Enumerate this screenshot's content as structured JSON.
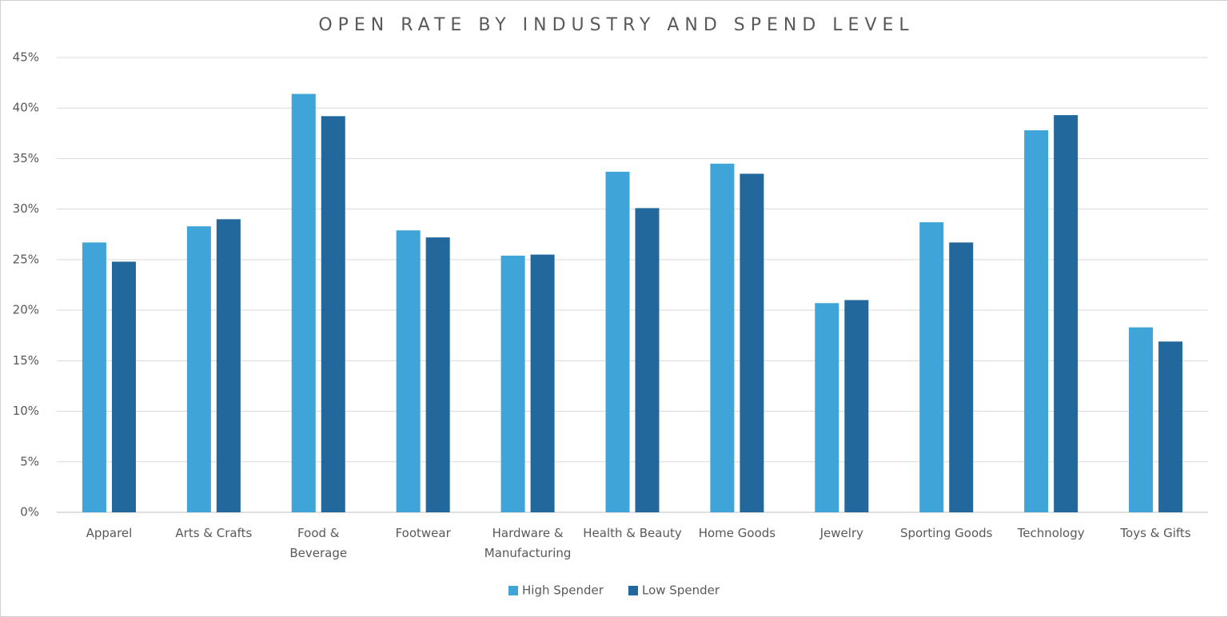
{
  "chart_data": {
    "type": "bar",
    "title": "OPEN RATE BY INDUSTRY AND SPEND LEVEL",
    "categories": [
      "Apparel",
      "Arts & Crafts",
      "Food &\nBeverage",
      "Footwear",
      "Hardware &\nManufacturing",
      "Health & Beauty",
      "Home Goods",
      "Jewelry",
      "Sporting Goods",
      "Technology",
      "Toys & Gifts"
    ],
    "series": [
      {
        "name": "High Spender",
        "color": "#3fa4d8",
        "values": [
          26.7,
          28.3,
          41.4,
          27.9,
          25.4,
          33.7,
          34.5,
          20.7,
          28.7,
          37.8,
          18.3
        ]
      },
      {
        "name": "Low Spender",
        "color": "#22689c",
        "values": [
          24.8,
          29.0,
          39.2,
          27.2,
          25.5,
          30.1,
          33.5,
          21.0,
          26.7,
          39.3,
          16.9
        ]
      }
    ],
    "ylim": [
      0,
      45
    ],
    "yticks": [
      {
        "value": 0,
        "label": "0%"
      },
      {
        "value": 5,
        "label": "5%"
      },
      {
        "value": 10,
        "label": "10%"
      },
      {
        "value": 15,
        "label": "15%"
      },
      {
        "value": 20,
        "label": "20%"
      },
      {
        "value": 25,
        "label": "25%"
      },
      {
        "value": 30,
        "label": "30%"
      },
      {
        "value": 35,
        "label": "35%"
      },
      {
        "value": 40,
        "label": "40%"
      },
      {
        "value": 45,
        "label": "45%"
      }
    ],
    "grid": true,
    "legend": "bottom"
  }
}
